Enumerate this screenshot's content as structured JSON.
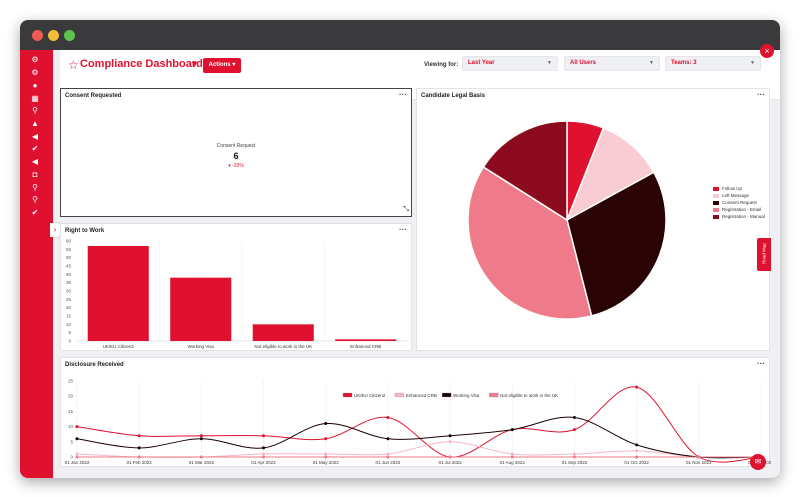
{
  "header": {
    "title": "Compliance Dashboard",
    "actions_label": "Actions",
    "viewing_label": "Viewing for:",
    "filters": [
      {
        "value": "Last Year"
      },
      {
        "value": "All Users"
      },
      {
        "value": "Teams: 3"
      }
    ]
  },
  "colors": {
    "accent": "#e0102f"
  },
  "sidebar": {
    "icons": [
      "settings-icon",
      "settings-icon",
      "globe-icon",
      "grid-icon",
      "search-icon",
      "bell-icon",
      "megaphone-icon",
      "check-icon",
      "megaphone-icon",
      "camera-icon",
      "search-icon",
      "search-icon",
      "check-icon"
    ]
  },
  "consent_requested": {
    "title": "Consent Requested",
    "kpi_label": "Consent Request",
    "kpi_value": "6",
    "kpi_delta": "-33%"
  },
  "right_to_work": {
    "title": "Right to Work",
    "chart_data": {
      "type": "bar",
      "categories": [
        "UK/EU Citizen2",
        "Working Visa",
        "Not eligible to work in the UK",
        "Enhanced CRB"
      ],
      "values": [
        57,
        38,
        10,
        1
      ],
      "ylim": [
        0,
        60
      ],
      "yticks": [
        "0",
        "5",
        "10",
        "15",
        "20",
        "25",
        "30",
        "35",
        "40",
        "45",
        "50",
        "55",
        "60"
      ]
    }
  },
  "legal_basis": {
    "title": "Candidate Legal Basis",
    "chart_data": {
      "type": "pie",
      "labels": [
        "Follow Up",
        "Left Message",
        "Consent Request",
        "Registration - Email",
        "Registration - Manual"
      ],
      "values": [
        6,
        11,
        29,
        38,
        16
      ],
      "colors": [
        "#e0102f",
        "#f9ccd4",
        "#2a0305",
        "#ee7a8a",
        "#8b0a1d"
      ],
      "legend": "right"
    }
  },
  "disclosure": {
    "title": "Disclosure Received",
    "chart_data": {
      "type": "line",
      "x": [
        "01 Jan 2022",
        "01 Feb 2022",
        "01 Mar 2022",
        "01 Apr 2022",
        "01 May 2022",
        "01 Jun 2022",
        "01 Jul 2022",
        "01 Aug 2022",
        "01 Sep 2022",
        "01 Oct 2022",
        "01 Nov 2022",
        "01 Dec 2022"
      ],
      "ylim": [
        0,
        25
      ],
      "yticks": [
        "0",
        "5",
        "10",
        "15",
        "20",
        "25"
      ],
      "legend": "top",
      "series": [
        {
          "name": "UK/EU Citizen2",
          "color": "#e0102f",
          "values": [
            10,
            7,
            7,
            7,
            6,
            13,
            0,
            9,
            9,
            23,
            0,
            0
          ]
        },
        {
          "name": "Enhanced CRB",
          "color": "#f4b8c2",
          "values": [
            1,
            0,
            0,
            1,
            1,
            1,
            5,
            1,
            1,
            2,
            0,
            0
          ]
        },
        {
          "name": "Working Visa",
          "color": "#1a0204",
          "values": [
            6,
            3,
            6,
            3,
            11,
            6,
            7,
            9,
            13,
            4,
            0,
            0
          ]
        },
        {
          "name": "Not eligible to work in the UK",
          "color": "#ee7a8a",
          "values": [
            0,
            0,
            0,
            0,
            0,
            0,
            0,
            0,
            0,
            0,
            0,
            0
          ]
        }
      ]
    }
  },
  "side_tabs": {
    "roadmap_label": "Road Map"
  }
}
